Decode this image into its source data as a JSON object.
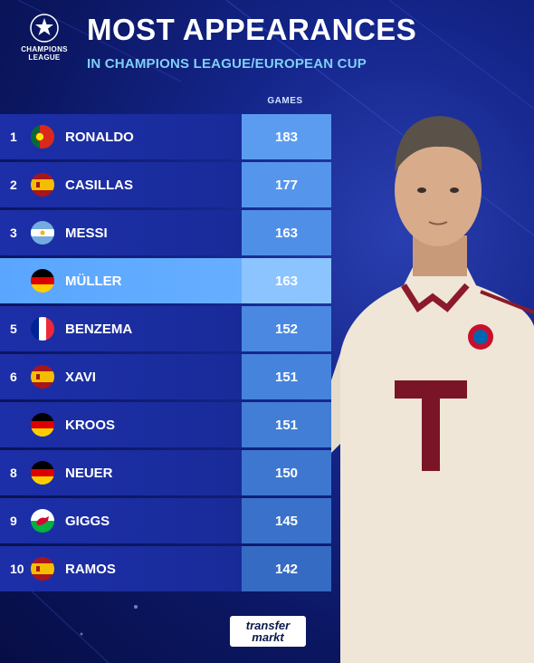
{
  "logo": {
    "line1": "CHAMPIONS",
    "line2": "LEAGUE"
  },
  "title": "MOST APPEARANCES",
  "subtitle": "IN CHAMPIONS LEAGUE/EUROPEAN CUP",
  "column_header": "GAMES",
  "rows": [
    {
      "rank": "1",
      "name": "RONALDO",
      "games": "183",
      "flag": "portugal"
    },
    {
      "rank": "2",
      "name": "CASILLAS",
      "games": "177",
      "flag": "spain"
    },
    {
      "rank": "3",
      "name": "MESSI",
      "games": "163",
      "flag": "argentina"
    },
    {
      "rank": "",
      "name": "MÜLLER",
      "games": "163",
      "flag": "germany",
      "highlight": true
    },
    {
      "rank": "5",
      "name": "BENZEMA",
      "games": "152",
      "flag": "france"
    },
    {
      "rank": "6",
      "name": "XAVI",
      "games": "151",
      "flag": "spain"
    },
    {
      "rank": "",
      "name": "KROOS",
      "games": "151",
      "flag": "germany"
    },
    {
      "rank": "8",
      "name": "NEUER",
      "games": "150",
      "flag": "germany"
    },
    {
      "rank": "9",
      "name": "GIGGS",
      "games": "145",
      "flag": "wales"
    },
    {
      "rank": "10",
      "name": "RAMOS",
      "games": "142",
      "flag": "spain"
    }
  ],
  "brand": {
    "line1": "transfer",
    "line2": "markt"
  },
  "colors": {
    "accent": "#7fd0f5",
    "highlight_row": "#5aa6ff",
    "games_column": "#4f8fe8"
  }
}
